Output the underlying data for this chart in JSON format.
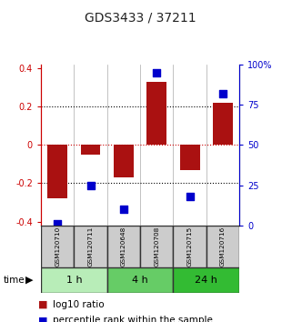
{
  "title": "GDS3433 / 37211",
  "samples": [
    "GSM120710",
    "GSM120711",
    "GSM120648",
    "GSM120708",
    "GSM120715",
    "GSM120716"
  ],
  "log10_ratio": [
    -0.28,
    -0.05,
    -0.17,
    0.33,
    -0.13,
    0.22
  ],
  "percentile_rank": [
    1,
    25,
    10,
    95,
    18,
    82
  ],
  "time_groups": [
    {
      "label": "1 h",
      "indices": [
        0,
        1
      ],
      "color": "#b8edb8"
    },
    {
      "label": "4 h",
      "indices": [
        2,
        3
      ],
      "color": "#66cc66"
    },
    {
      "label": "24 h",
      "indices": [
        4,
        5
      ],
      "color": "#33bb33"
    }
  ],
  "ylim_left": [
    -0.42,
    0.42
  ],
  "ylim_right": [
    0,
    100
  ],
  "bar_color": "#aa1111",
  "dot_color": "#0000cc",
  "bar_width": 0.6,
  "dot_size": 35,
  "hline_color": "#cc0000",
  "grid_color": "#000000",
  "sample_box_color": "#cccccc",
  "left_tick_labels": [
    "-0.4",
    "-0.2",
    "0",
    "0.2",
    "0.4"
  ],
  "left_tick_vals": [
    -0.4,
    -0.2,
    0.0,
    0.2,
    0.4
  ],
  "right_tick_labels": [
    "0",
    "25",
    "50",
    "75",
    "100%"
  ],
  "right_tick_vals": [
    0,
    25,
    50,
    75,
    100
  ]
}
